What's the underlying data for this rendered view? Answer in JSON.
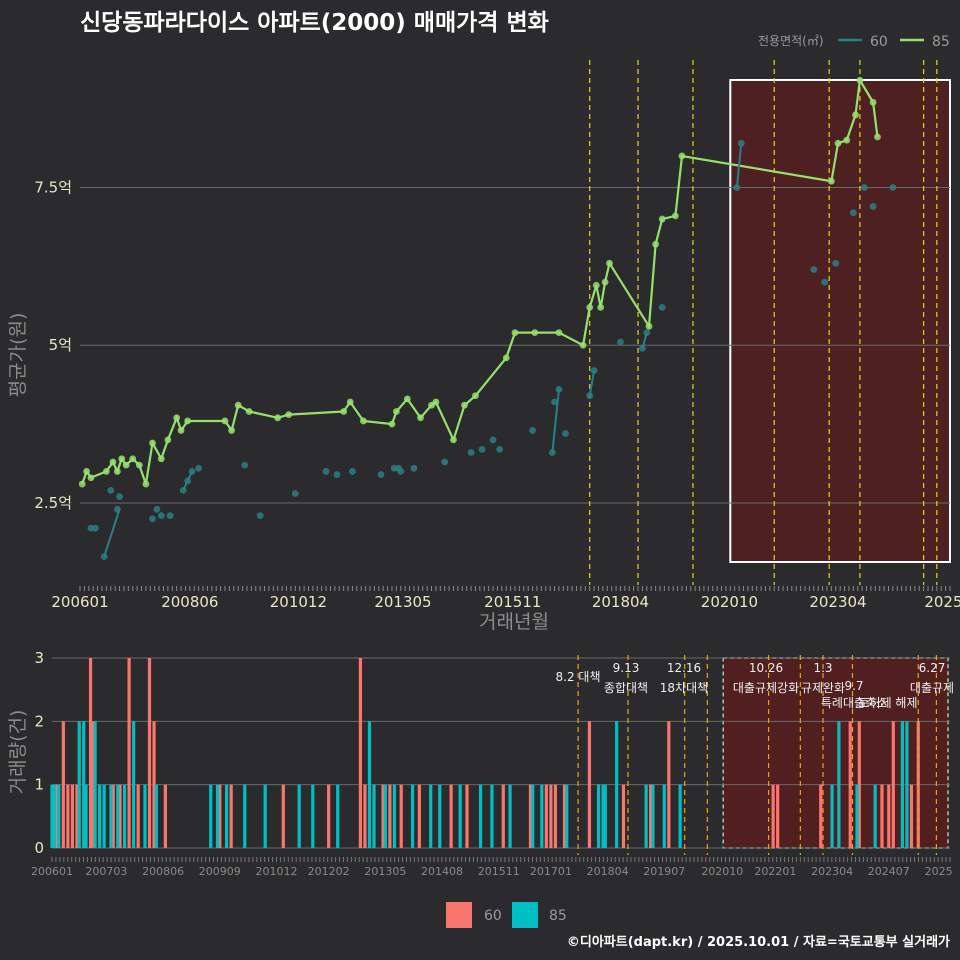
{
  "title": "신당동파라다이스 아파트(2000) 매매가격 변화",
  "footer": "©디아파트(dapt.kr) / 2025.10.01 / 자료=국토교통부 실거래가",
  "legend": {
    "title": "전용면적(㎡)",
    "items": [
      {
        "label": "60",
        "color": "#2c7f86"
      },
      {
        "label": "85",
        "color": "#96e06e"
      }
    ]
  },
  "bottom_legend": [
    {
      "label": "60",
      "color": "#f8766d"
    },
    {
      "label": "85",
      "color": "#00bfc4"
    }
  ],
  "colors": {
    "line60": "#2c7f86",
    "line85": "#96e06e",
    "bar60": "#f8766d",
    "bar85": "#00bfc4",
    "policy": "#e5d418",
    "policyBottom": "#e6a41a",
    "shade": "#5b1d1d"
  },
  "chart_data": [
    {
      "type": "line",
      "title": "신당동파라다이스 아파트(2000) 매매가격 변화",
      "xlabel": "거래년월",
      "ylabel": "평균가(원)",
      "x_ticks": [
        "200601",
        "200806",
        "201012",
        "201305",
        "201511",
        "201804",
        "202010",
        "202304",
        "2025"
      ],
      "y_ticks": [
        {
          "value": 2.5,
          "label": "2.5억"
        },
        {
          "value": 5,
          "label": "5억"
        },
        {
          "value": 7.5,
          "label": "7.5억"
        }
      ],
      "xlim": [
        2006.0,
        2025.8
      ],
      "ylim": [
        1.2,
        9.6
      ],
      "policy_lines": [
        2017.6,
        2018.7,
        2019.95,
        2021.8,
        2023.05,
        2023.75,
        2025.2,
        2025.5
      ],
      "highlight_range": [
        2020.8,
        2025.8
      ],
      "series": [
        {
          "name": "85",
          "points": [
            [
              2006.05,
              2.8
            ],
            [
              2006.15,
              3.0
            ],
            [
              2006.25,
              2.9
            ],
            [
              2006.6,
              3.0
            ],
            [
              2006.75,
              3.15
            ],
            [
              2006.85,
              3.0
            ],
            [
              2006.95,
              3.2
            ],
            [
              2007.05,
              3.1
            ],
            [
              2007.2,
              3.2
            ],
            [
              2007.35,
              3.1
            ],
            [
              2007.5,
              2.8
            ],
            [
              2007.65,
              3.45
            ],
            [
              2007.85,
              3.2
            ],
            [
              2008.0,
              3.5
            ],
            [
              2008.2,
              3.85
            ],
            [
              2008.3,
              3.65
            ],
            [
              2008.45,
              3.8
            ],
            [
              2009.3,
              3.8
            ],
            [
              2009.45,
              3.65
            ],
            [
              2009.6,
              4.05
            ],
            [
              2009.85,
              3.95
            ],
            [
              2010.5,
              3.85
            ],
            [
              2010.75,
              3.9
            ],
            [
              2012.0,
              3.95
            ],
            [
              2012.15,
              4.1
            ],
            [
              2012.45,
              3.8
            ],
            [
              2013.1,
              3.75
            ],
            [
              2013.2,
              3.95
            ],
            [
              2013.45,
              4.15
            ],
            [
              2013.75,
              3.85
            ],
            [
              2014.0,
              4.05
            ],
            [
              2014.1,
              4.1
            ],
            [
              2014.5,
              3.5
            ],
            [
              2014.75,
              4.05
            ],
            [
              2015.0,
              4.2
            ],
            [
              2015.7,
              4.8
            ],
            [
              2015.9,
              5.2
            ],
            [
              2016.35,
              5.2
            ],
            [
              2016.9,
              5.2
            ],
            [
              2017.45,
              5.0
            ],
            [
              2017.6,
              5.6
            ],
            [
              2017.75,
              5.95
            ],
            [
              2017.85,
              5.6
            ],
            [
              2017.95,
              6.0
            ],
            [
              2018.05,
              6.3
            ],
            [
              2018.95,
              5.3
            ],
            [
              2019.1,
              6.6
            ],
            [
              2019.25,
              7.0
            ],
            [
              2019.55,
              7.05
            ],
            [
              2019.7,
              8.0
            ],
            [
              2023.1,
              7.6
            ],
            [
              2023.25,
              8.2
            ],
            [
              2023.45,
              8.25
            ],
            [
              2023.65,
              8.65
            ],
            [
              2023.75,
              9.2
            ],
            [
              2024.05,
              8.85
            ],
            [
              2024.15,
              8.3
            ]
          ]
        },
        {
          "name": "60",
          "points": [
            [
              2006.25,
              2.1
            ],
            [
              2006.35,
              2.1
            ],
            [
              2006.55,
              1.65
            ],
            [
              2006.85,
              2.4
            ],
            [
              2006.9,
              2.6
            ],
            [
              2006.7,
              2.7
            ],
            [
              2007.65,
              2.25
            ],
            [
              2007.75,
              2.4
            ],
            [
              2007.85,
              2.3
            ],
            [
              2008.05,
              2.3
            ],
            [
              2008.35,
              2.7
            ],
            [
              2008.45,
              2.85
            ],
            [
              2008.55,
              3.0
            ],
            [
              2008.7,
              3.05
            ],
            [
              2009.75,
              3.1
            ],
            [
              2010.1,
              2.3
            ],
            [
              2010.9,
              2.65
            ],
            [
              2011.6,
              3.0
            ],
            [
              2011.85,
              2.95
            ],
            [
              2012.2,
              3.0
            ],
            [
              2012.85,
              2.95
            ],
            [
              2013.15,
              3.05
            ],
            [
              2013.25,
              3.05
            ],
            [
              2013.3,
              3.0
            ],
            [
              2013.6,
              3.05
            ],
            [
              2014.3,
              3.15
            ],
            [
              2014.9,
              3.3
            ],
            [
              2015.15,
              3.35
            ],
            [
              2015.4,
              3.5
            ],
            [
              2015.55,
              3.35
            ],
            [
              2016.3,
              3.65
            ],
            [
              2016.75,
              3.3
            ],
            [
              2016.8,
              4.1
            ],
            [
              2016.9,
              4.3
            ],
            [
              2017.05,
              3.6
            ],
            [
              2017.6,
              4.2
            ],
            [
              2017.7,
              4.6
            ],
            [
              2018.3,
              5.05
            ],
            [
              2018.8,
              4.95
            ],
            [
              2018.9,
              5.2
            ],
            [
              2019.25,
              5.6
            ],
            [
              2020.95,
              7.5
            ],
            [
              2021.05,
              8.2
            ],
            [
              2022.7,
              6.2
            ],
            [
              2022.95,
              6.0
            ],
            [
              2023.2,
              6.3
            ],
            [
              2023.6,
              7.1
            ],
            [
              2023.85,
              7.5
            ],
            [
              2024.05,
              7.2
            ],
            [
              2024.5,
              7.5
            ]
          ]
        }
      ]
    },
    {
      "type": "bar",
      "xlabel": "",
      "ylabel": "거래량(건)",
      "y_ticks": [
        0,
        1,
        2,
        3
      ],
      "ylim": [
        0,
        3
      ],
      "x_ticks": [
        "200601",
        "200703",
        "200806",
        "200909",
        "201012",
        "201202",
        "201305",
        "201408",
        "201511",
        "201701",
        "201804",
        "201907",
        "202010",
        "202201",
        "202304",
        "202407",
        "2025"
      ],
      "policy_annotations": [
        {
          "date_label": "8.2 대책",
          "desc": ""
        },
        {
          "date_label": "9.13",
          "desc": "종합대책"
        },
        {
          "date_label": "12.16",
          "desc": "18차대책"
        },
        {
          "date_label": "10.26",
          "desc": "대출규제강화"
        },
        {
          "date_label": "1.3",
          "desc": "규제완화"
        },
        {
          "date_label": "9.7",
          "desc": "특례대출축소"
        },
        {
          "date_label": "",
          "desc": "토허제 해제"
        },
        {
          "date_label": "6.27",
          "desc": "대출규제"
        }
      ],
      "policy_lines": [
        2017.6,
        2018.7,
        2019.95,
        2020.45,
        2021.8,
        2022.5,
        2023.0,
        2023.65,
        2025.1,
        2025.5
      ],
      "highlight_range": [
        2020.8,
        2025.8
      ],
      "series": [
        {
          "name": "60",
          "values": [
            [
              2006.1,
              1
            ],
            [
              2006.25,
              2
            ],
            [
              2006.35,
              1
            ],
            [
              2006.45,
              1
            ],
            [
              2006.55,
              1
            ],
            [
              2006.85,
              3
            ],
            [
              2006.9,
              2
            ],
            [
              2007.35,
              1
            ],
            [
              2007.5,
              1
            ],
            [
              2007.7,
              3
            ],
            [
              2007.9,
              1
            ],
            [
              2008.15,
              3
            ],
            [
              2008.25,
              2
            ],
            [
              2008.5,
              1
            ],
            [
              2009.7,
              1
            ],
            [
              2009.95,
              1
            ],
            [
              2011.1,
              1
            ],
            [
              2012.1,
              1
            ],
            [
              2012.8,
              3
            ],
            [
              2012.9,
              1
            ],
            [
              2013.3,
              1
            ],
            [
              2013.45,
              1
            ],
            [
              2013.7,
              1
            ],
            [
              2014.1,
              1
            ],
            [
              2014.8,
              1
            ],
            [
              2015.15,
              1
            ],
            [
              2015.95,
              1
            ],
            [
              2016.55,
              1
            ],
            [
              2016.9,
              1
            ],
            [
              2017.0,
              1
            ],
            [
              2017.1,
              1
            ],
            [
              2017.3,
              1
            ],
            [
              2017.85,
              2
            ],
            [
              2018.6,
              1
            ],
            [
              2019.2,
              1
            ],
            [
              2019.6,
              2
            ],
            [
              2021.9,
              1
            ],
            [
              2022.0,
              1
            ],
            [
              2022.95,
              1
            ],
            [
              2023.6,
              2
            ],
            [
              2023.8,
              2
            ],
            [
              2024.3,
              1
            ],
            [
              2024.45,
              1
            ],
            [
              2024.55,
              2
            ],
            [
              2024.95,
              1
            ],
            [
              2025.1,
              2
            ]
          ]
        },
        {
          "name": "85",
          "values": [
            [
              2006.0,
              1
            ],
            [
              2006.05,
              1
            ],
            [
              2006.15,
              1
            ],
            [
              2006.6,
              2
            ],
            [
              2006.7,
              2
            ],
            [
              2006.75,
              1
            ],
            [
              2006.95,
              2
            ],
            [
              2007.05,
              1
            ],
            [
              2007.15,
              1
            ],
            [
              2007.3,
              1
            ],
            [
              2007.45,
              1
            ],
            [
              2007.6,
              1
            ],
            [
              2007.8,
              2
            ],
            [
              2008.05,
              1
            ],
            [
              2008.3,
              1
            ],
            [
              2009.5,
              1
            ],
            [
              2009.65,
              1
            ],
            [
              2009.85,
              1
            ],
            [
              2010.25,
              1
            ],
            [
              2010.7,
              1
            ],
            [
              2011.45,
              1
            ],
            [
              2011.75,
              1
            ],
            [
              2012.3,
              1
            ],
            [
              2013.0,
              2
            ],
            [
              2013.1,
              1
            ],
            [
              2013.35,
              1
            ],
            [
              2013.55,
              1
            ],
            [
              2013.95,
              1
            ],
            [
              2014.35,
              1
            ],
            [
              2014.55,
              1
            ],
            [
              2015.0,
              1
            ],
            [
              2015.45,
              1
            ],
            [
              2015.7,
              1
            ],
            [
              2016.1,
              1
            ],
            [
              2016.6,
              1
            ],
            [
              2016.8,
              1
            ],
            [
              2017.35,
              1
            ],
            [
              2018.05,
              1
            ],
            [
              2018.15,
              1
            ],
            [
              2018.2,
              1
            ],
            [
              2018.45,
              2
            ],
            [
              2019.1,
              1
            ],
            [
              2019.25,
              1
            ],
            [
              2019.5,
              1
            ],
            [
              2019.85,
              1
            ],
            [
              2023.2,
              1
            ],
            [
              2023.35,
              2
            ],
            [
              2023.75,
              1
            ],
            [
              2024.15,
              1
            ],
            [
              2024.75,
              2
            ],
            [
              2024.85,
              2
            ]
          ]
        }
      ]
    }
  ]
}
